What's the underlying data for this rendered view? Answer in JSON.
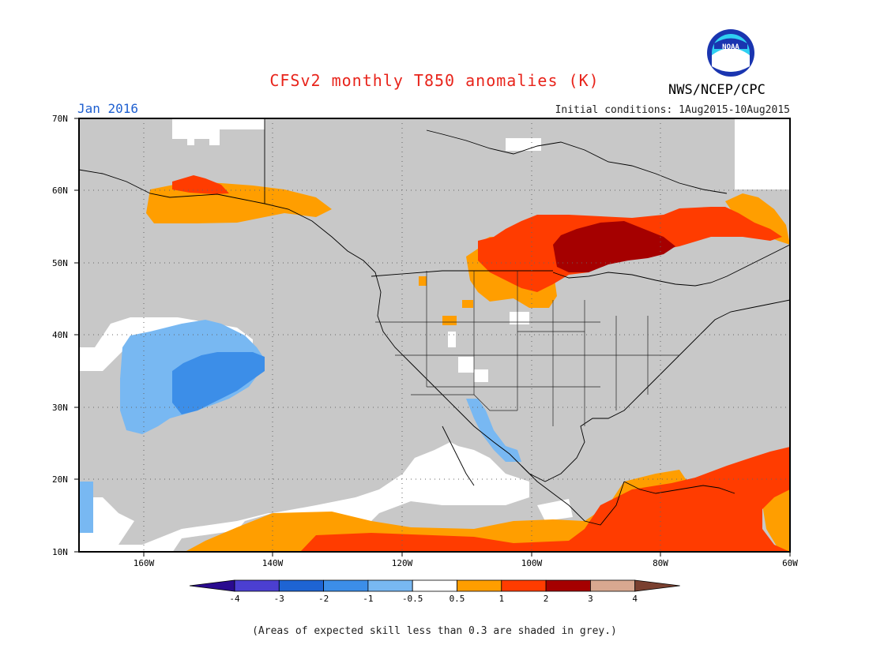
{
  "header": {
    "title": "CFSv2 monthly T850 anomalies (K)",
    "valid_month": "Jan 2016",
    "initial_conditions": "Initial conditions: 1Aug2015-10Aug2015",
    "agency": "NWS/NCEP/CPC",
    "logo_text": "NOAA"
  },
  "map": {
    "lat_labels": [
      "70N",
      "60N",
      "50N",
      "40N",
      "30N",
      "20N",
      "10N"
    ],
    "lon_labels": [
      "160W",
      "140W",
      "120W",
      "100W",
      "80W",
      "60W"
    ],
    "colors": {
      "grey_low_skill": "#c8c8c8",
      "near_normal": "#ffffff",
      "coast": "#000000"
    }
  },
  "colorbar": {
    "tick_labels": [
      "-4",
      "-3",
      "-2",
      "-1",
      "-0.5",
      "0.5",
      "1",
      "2",
      "3",
      "4"
    ],
    "colors": [
      "#2a0b8f",
      "#4b3fd1",
      "#1e64d3",
      "#3c8ee8",
      "#78b8f2",
      "#ffffff",
      "#ff9e00",
      "#ff3c00",
      "#a50000",
      "#d8a890",
      "#7a4030"
    ]
  },
  "footnote": "(Areas of expected skill less than 0.3 are shaded in grey.)"
}
